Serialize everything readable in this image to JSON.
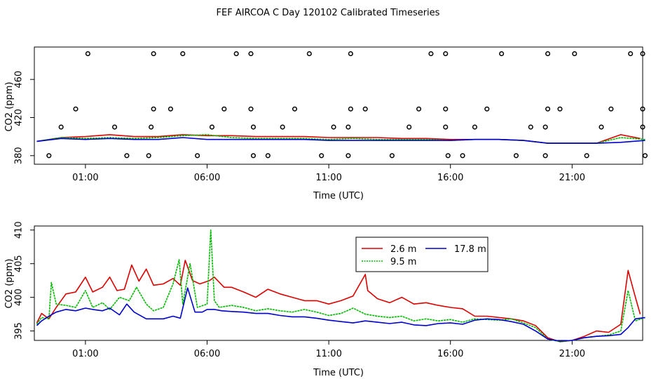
{
  "figure_title": "FEF AIRCOA C  Day 120102  Calibrated Timeseries",
  "colors": {
    "s1": "#dd0000",
    "s2": "#00bb00",
    "s3": "#0000cc",
    "axis": "#000000"
  },
  "chart_data": [
    {
      "type": "line+scatter",
      "xlabel": "Time (UTC)",
      "ylabel": "CO2 (ppm)",
      "x_unit": "hours UTC",
      "xlim": [
        -1.1,
        23.9
      ],
      "ylim": [
        371,
        494
      ],
      "x_ticks": [
        1,
        6,
        11,
        16,
        21
      ],
      "x_tick_labels": [
        "01:00",
        "06:00",
        "11:00",
        "16:00",
        "21:00"
      ],
      "y_ticks": [
        380,
        420,
        460
      ],
      "y_tick_labels": [
        "380",
        "420",
        "460"
      ],
      "scatter_marker": "o",
      "scatter_points": [
        {
          "x": 1.1,
          "y": 487
        },
        {
          "x": 3.8,
          "y": 487
        },
        {
          "x": 5.0,
          "y": 487
        },
        {
          "x": 7.2,
          "y": 487
        },
        {
          "x": 7.8,
          "y": 487
        },
        {
          "x": 10.2,
          "y": 487
        },
        {
          "x": 11.9,
          "y": 487
        },
        {
          "x": 15.2,
          "y": 487
        },
        {
          "x": 15.8,
          "y": 487
        },
        {
          "x": 18.1,
          "y": 487
        },
        {
          "x": 20.0,
          "y": 487
        },
        {
          "x": 21.1,
          "y": 487
        },
        {
          "x": 23.4,
          "y": 487
        },
        {
          "x": 23.9,
          "y": 487
        },
        {
          "x": 0.6,
          "y": 429
        },
        {
          "x": 3.8,
          "y": 429
        },
        {
          "x": 4.5,
          "y": 429
        },
        {
          "x": 6.7,
          "y": 429
        },
        {
          "x": 7.8,
          "y": 429
        },
        {
          "x": 9.6,
          "y": 429
        },
        {
          "x": 11.9,
          "y": 429
        },
        {
          "x": 12.5,
          "y": 429
        },
        {
          "x": 14.7,
          "y": 429
        },
        {
          "x": 15.8,
          "y": 429
        },
        {
          "x": 17.5,
          "y": 429
        },
        {
          "x": 20.0,
          "y": 429
        },
        {
          "x": 20.5,
          "y": 429
        },
        {
          "x": 22.6,
          "y": 429
        },
        {
          "x": 23.9,
          "y": 429
        },
        {
          "x": 0.0,
          "y": 410
        },
        {
          "x": 2.2,
          "y": 410
        },
        {
          "x": 3.7,
          "y": 410
        },
        {
          "x": 6.2,
          "y": 410
        },
        {
          "x": 7.9,
          "y": 410
        },
        {
          "x": 9.1,
          "y": 410
        },
        {
          "x": 11.2,
          "y": 410
        },
        {
          "x": 11.8,
          "y": 410
        },
        {
          "x": 14.3,
          "y": 410
        },
        {
          "x": 15.8,
          "y": 410
        },
        {
          "x": 17.0,
          "y": 410
        },
        {
          "x": 19.3,
          "y": 410
        },
        {
          "x": 19.9,
          "y": 410
        },
        {
          "x": 22.2,
          "y": 410
        },
        {
          "x": 23.9,
          "y": 410
        },
        {
          "x": -0.5,
          "y": 380
        },
        {
          "x": 2.7,
          "y": 380
        },
        {
          "x": 3.6,
          "y": 380
        },
        {
          "x": 5.6,
          "y": 380
        },
        {
          "x": 7.9,
          "y": 380
        },
        {
          "x": 8.5,
          "y": 380
        },
        {
          "x": 10.7,
          "y": 380
        },
        {
          "x": 11.8,
          "y": 380
        },
        {
          "x": 13.6,
          "y": 380
        },
        {
          "x": 15.9,
          "y": 380
        },
        {
          "x": 16.5,
          "y": 380
        },
        {
          "x": 18.7,
          "y": 380
        },
        {
          "x": 19.9,
          "y": 380
        },
        {
          "x": 21.6,
          "y": 380
        },
        {
          "x": 24.0,
          "y": 380
        }
      ],
      "series": [
        {
          "name": "2.6 m",
          "color": "#dd0000",
          "x": [
            -1,
            0,
            1,
            2,
            3,
            4,
            5,
            6,
            7,
            8,
            9,
            10,
            11,
            12,
            13,
            14,
            15,
            16,
            17,
            18,
            19,
            20,
            21,
            22,
            23,
            23.8
          ],
          "values": [
            395,
            399,
            400,
            402,
            400,
            400,
            402,
            401,
            401,
            400,
            400,
            400,
            399,
            399,
            399,
            398,
            398,
            397,
            397,
            397,
            396,
            393,
            393,
            393,
            402,
            398
          ]
        },
        {
          "name": "9.5 m",
          "color": "#00bb00",
          "x": [
            -1,
            0,
            1,
            2,
            3,
            4,
            5,
            6,
            7,
            8,
            9,
            10,
            11,
            12,
            13,
            14,
            15,
            16,
            17,
            18,
            19,
            20,
            21,
            22,
            23,
            24
          ],
          "values": [
            395,
            399,
            398,
            399,
            398,
            399,
            401,
            402,
            399,
            398,
            398,
            398,
            397,
            398,
            397,
            397,
            397,
            396,
            397,
            397,
            396,
            393,
            393,
            393,
            399,
            397
          ]
        },
        {
          "name": "17.8 m",
          "color": "#0000cc",
          "x": [
            -1,
            0,
            1,
            2,
            3,
            4,
            5,
            6,
            7,
            8,
            9,
            10,
            11,
            12,
            13,
            14,
            15,
            16,
            17,
            18,
            19,
            20,
            21,
            22,
            23,
            24
          ],
          "values": [
            395,
            398,
            397,
            398,
            397,
            397,
            399,
            397,
            397,
            397,
            397,
            397,
            396,
            396,
            396,
            396,
            396,
            396,
            397,
            397,
            396,
            393,
            393,
            393,
            394,
            396
          ]
        }
      ]
    },
    {
      "type": "line",
      "xlabel": "Time (UTC)",
      "ylabel": "CO2 (ppm)",
      "x_unit": "hours UTC",
      "xlim": [
        -1.1,
        23.9
      ],
      "ylim": [
        393.6,
        410.6
      ],
      "x_ticks": [
        1,
        6,
        11,
        16,
        21
      ],
      "x_tick_labels": [
        "01:00",
        "06:00",
        "11:00",
        "16:00",
        "21:00"
      ],
      "y_ticks": [
        395,
        400,
        405,
        410
      ],
      "y_tick_labels": [
        "395",
        "400",
        "405",
        "410"
      ],
      "legend": {
        "placement": "top-center",
        "entries": [
          "2.6 m",
          "17.8 m",
          "9.5 m"
        ]
      },
      "series": [
        {
          "name": "2.6 m",
          "color": "#dd0000",
          "x": [
            -1,
            -0.8,
            -0.5,
            -0.2,
            0.2,
            0.6,
            1.0,
            1.3,
            1.7,
            2.0,
            2.3,
            2.6,
            2.9,
            3.2,
            3.5,
            3.8,
            4.2,
            4.6,
            4.9,
            5.1,
            5.4,
            5.7,
            6.1,
            6.3,
            6.7,
            7.0,
            7.5,
            8.0,
            8.5,
            9.0,
            9.5,
            10.0,
            10.5,
            11.0,
            11.5,
            12.0,
            12.5,
            12.6,
            13.0,
            13.5,
            14.0,
            14.5,
            15.0,
            15.5,
            16.0,
            16.5,
            17.0,
            17.5,
            18.0,
            18.5,
            19.0,
            19.5,
            20.0,
            20.5,
            21.0,
            21.5,
            22.0,
            22.5,
            23.0,
            23.3,
            23.6,
            23.8
          ],
          "values": [
            396.2,
            397.6,
            396.8,
            398.5,
            400.5,
            400.8,
            403.0,
            400.8,
            401.5,
            403.0,
            401.0,
            401.2,
            404.8,
            402.4,
            404.2,
            401.8,
            402.0,
            402.8,
            401.8,
            405.5,
            402.5,
            402.0,
            402.5,
            403.0,
            401.5,
            401.5,
            400.8,
            400.0,
            401.2,
            400.5,
            400.0,
            399.5,
            399.5,
            399.0,
            399.5,
            400.2,
            403.4,
            401.0,
            399.8,
            399.2,
            400.0,
            399.0,
            399.2,
            398.8,
            398.5,
            398.3,
            397.2,
            397.2,
            397.0,
            396.8,
            396.5,
            395.8,
            394.0,
            393.4,
            393.6,
            394.2,
            395.0,
            394.8,
            396.0,
            404.0,
            400.0,
            397.5
          ]
        },
        {
          "name": "9.5 m",
          "color": "#00bb00",
          "x": [
            -1,
            -0.8,
            -0.5,
            -0.4,
            -0.2,
            0.2,
            0.6,
            1.0,
            1.3,
            1.7,
            2.0,
            2.4,
            2.8,
            3.1,
            3.5,
            3.8,
            4.2,
            4.6,
            4.85,
            5.0,
            5.3,
            5.6,
            6.0,
            6.15,
            6.3,
            6.5,
            7.0,
            7.5,
            8.0,
            8.5,
            9.0,
            9.5,
            10.0,
            10.5,
            11.0,
            11.5,
            12.0,
            12.5,
            13.0,
            13.5,
            14.0,
            14.5,
            15.0,
            15.5,
            16.0,
            16.5,
            17.0,
            17.5,
            18.0,
            18.5,
            19.0,
            19.5,
            20.0,
            20.5,
            21.0,
            21.5,
            22.0,
            22.5,
            23.0,
            23.3,
            23.6,
            24.0
          ],
          "values": [
            396.0,
            397.0,
            396.8,
            402.2,
            399.0,
            398.8,
            398.5,
            401.0,
            398.5,
            399.2,
            398.2,
            400.0,
            399.5,
            401.5,
            399.0,
            398.0,
            398.5,
            402.0,
            405.6,
            399.0,
            405.0,
            398.5,
            399.0,
            410.0,
            399.5,
            398.5,
            398.8,
            398.5,
            398.0,
            398.3,
            398.0,
            397.8,
            398.2,
            397.8,
            397.3,
            397.6,
            398.4,
            397.5,
            397.2,
            397.0,
            397.2,
            396.5,
            396.8,
            396.5,
            396.7,
            396.3,
            396.8,
            396.7,
            396.6,
            396.8,
            396.2,
            395.5,
            393.8,
            393.4,
            393.6,
            394.0,
            394.2,
            394.4,
            395.0,
            401.0,
            396.5,
            397.0
          ]
        },
        {
          "name": "17.8 m",
          "color": "#0000cc",
          "x": [
            -1,
            -0.8,
            -0.5,
            -0.2,
            0.2,
            0.6,
            1.0,
            1.3,
            1.7,
            2.0,
            2.4,
            2.7,
            3.0,
            3.5,
            3.8,
            4.2,
            4.6,
            4.9,
            5.2,
            5.5,
            5.8,
            6.0,
            6.3,
            6.6,
            7.0,
            7.5,
            8.0,
            8.5,
            9.0,
            9.5,
            10.0,
            10.5,
            11.0,
            11.5,
            12.0,
            12.5,
            13.0,
            13.5,
            14.0,
            14.5,
            15.0,
            15.5,
            16.0,
            16.5,
            17.0,
            17.5,
            18.0,
            18.5,
            19.0,
            19.5,
            20.0,
            20.5,
            21.0,
            21.5,
            22.0,
            22.5,
            23.0,
            23.3,
            23.6,
            24.0
          ],
          "values": [
            395.8,
            396.5,
            397.2,
            397.8,
            398.2,
            398.0,
            398.4,
            398.2,
            398.0,
            398.4,
            397.4,
            399.0,
            397.8,
            396.8,
            396.8,
            396.8,
            397.2,
            396.9,
            401.4,
            397.8,
            397.8,
            398.2,
            398.2,
            398.0,
            397.9,
            397.8,
            397.6,
            397.6,
            397.3,
            397.1,
            397.1,
            396.9,
            396.6,
            396.4,
            396.2,
            396.5,
            396.3,
            396.1,
            396.3,
            395.9,
            395.8,
            396.1,
            396.2,
            396.0,
            396.6,
            396.8,
            396.7,
            396.4,
            396.0,
            395.0,
            393.8,
            393.5,
            393.6,
            394.0,
            394.2,
            394.3,
            394.5,
            395.5,
            396.8,
            397.0
          ]
        }
      ]
    }
  ]
}
